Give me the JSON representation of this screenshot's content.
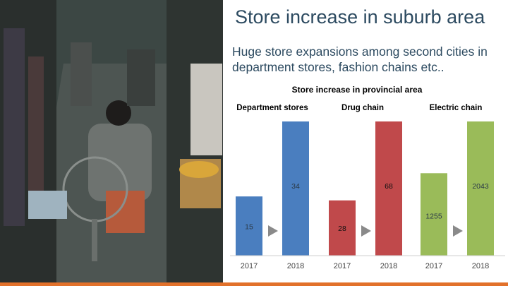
{
  "slide": {
    "title": "Store increase in suburb area",
    "subtitle": "Huge store expansions among second cities in department stores, fashion chains etc.."
  },
  "chart_data": {
    "type": "bar",
    "title": "Store increase in provincial area",
    "groups": [
      {
        "name": "Department stores",
        "color": "#4a7ebf",
        "categories": [
          "2017",
          "2018"
        ],
        "values": [
          15,
          34
        ],
        "labels": [
          "15",
          "34"
        ],
        "ymax": 34
      },
      {
        "name": "Drug chain",
        "color": "#c0494b",
        "categories": [
          "2017",
          "2018"
        ],
        "values": [
          28,
          68
        ],
        "labels": [
          "28",
          "68"
        ],
        "ymax": 68
      },
      {
        "name": "Electric chain",
        "color": "#9abb59",
        "categories": [
          "2017",
          "2018"
        ],
        "values": [
          1255,
          2043
        ],
        "labels": [
          "1255",
          "2043"
        ],
        "ymax": 2043
      }
    ]
  }
}
